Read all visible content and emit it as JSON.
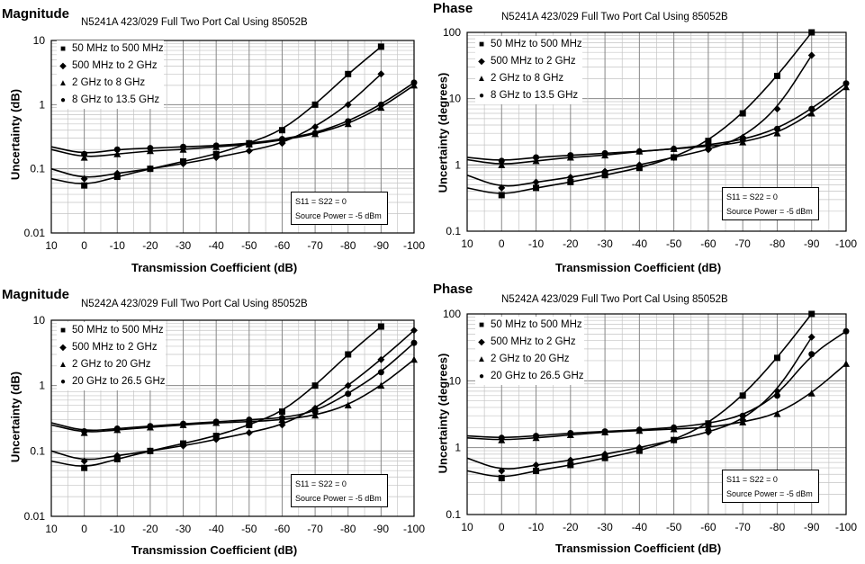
{
  "panels": [
    {
      "heading": "Magnitude",
      "chart_title": "N5241A 423/029 Full Two Port Cal Using 85052B",
      "ylabel": "Uncertainty (dB)",
      "xlabel": "Transmission Coefficient (dB)",
      "note_line1": "S11 = S22 = 0",
      "note_line2": "Source Power = -5 dBm",
      "yticks": [
        "10",
        "1",
        "0.1",
        "0.01"
      ],
      "xticks": [
        "10",
        "0",
        "-10",
        "-20",
        "-30",
        "-40",
        "-50",
        "-60",
        "-70",
        "-80",
        "-90",
        "-100"
      ],
      "legend": [
        "50 MHz to 500 MHz",
        "500 MHz to 2 GHz",
        "2 GHz to 8 GHz",
        "8 GHz to 13.5 GHz"
      ]
    },
    {
      "heading": "Phase",
      "chart_title": "N5241A 423/029 Full Two Port Cal Using 85052B",
      "ylabel": "Uncertainty (degrees)",
      "xlabel": "Transmission Coefficient (dB)",
      "note_line1": "S11 = S22 = 0",
      "note_line2": "Source Power = -5 dBm",
      "yticks": [
        "100",
        "10",
        "1",
        "0.1"
      ],
      "xticks": [
        "10",
        "0",
        "-10",
        "-20",
        "-30",
        "-40",
        "-50",
        "-60",
        "-70",
        "-80",
        "-90",
        "-100"
      ],
      "legend": [
        "50 MHz to 500 MHz",
        "500 MHz to 2 GHz",
        "2 GHz to 8 GHz",
        "8 GHz to 13.5 GHz"
      ]
    },
    {
      "heading": "Magnitude",
      "chart_title": "N5242A 423/029 Full Two Port Cal Using 85052B",
      "ylabel": "Uncertainty (dB)",
      "xlabel": "Transmission Coefficient (dB)",
      "note_line1": "S11 = S22 = 0",
      "note_line2": "Source Power = -5 dBm",
      "yticks": [
        "10",
        "1",
        "0.1",
        "0.01"
      ],
      "xticks": [
        "10",
        "0",
        "-10",
        "-20",
        "-30",
        "-40",
        "-50",
        "-60",
        "-70",
        "-80",
        "-90",
        "-100"
      ],
      "legend": [
        "50 MHz to 500 MHz",
        "500 MHz to 2 GHz",
        "2 GHz to 20 GHz",
        "20 GHz to 26.5 GHz"
      ]
    },
    {
      "heading": "Phase",
      "chart_title": "N5242A 423/029 Full Two Port Cal Using 85052B",
      "ylabel": "Uncertainty (degrees)",
      "xlabel": "Transmission Coefficient (dB)",
      "note_line1": "S11 = S22 = 0",
      "note_line2": "Source Power = -5 dBm",
      "yticks": [
        "100",
        "10",
        "1",
        "0.1"
      ],
      "xticks": [
        "10",
        "0",
        "-10",
        "-20",
        "-30",
        "-40",
        "-50",
        "-60",
        "-70",
        "-80",
        "-90",
        "-100"
      ],
      "legend": [
        "50 MHz to 500 MHz",
        "500 MHz to 2 GHz",
        "2 GHz to 20 GHz",
        "20 GHz to 26.5 GHz"
      ]
    }
  ],
  "chart_data": [
    {
      "type": "line",
      "title": "N5241A 423/029 Full Two Port Cal Using 85052B",
      "xlabel": "Transmission Coefficient (dB)",
      "ylabel": "Uncertainty (dB)",
      "xlim": [
        10,
        -100
      ],
      "ylim": [
        0.01,
        10
      ],
      "yscale": "log",
      "grid": true,
      "legend_position": "top-left",
      "series": [
        {
          "name": "50 MHz to 500 MHz",
          "marker": "square",
          "x": [
            10,
            0,
            -10,
            -20,
            -30,
            -40,
            -50,
            -60,
            -70,
            -80,
            -90
          ],
          "y": [
            0.07,
            0.055,
            0.075,
            0.1,
            0.13,
            0.17,
            0.25,
            0.4,
            1.0,
            3.0,
            8.0
          ]
        },
        {
          "name": "500 MHz to 2 GHz",
          "marker": "diamond",
          "x": [
            10,
            0,
            -10,
            -20,
            -30,
            -40,
            -50,
            -60,
            -70,
            -80,
            -90
          ],
          "y": [
            0.1,
            0.07,
            0.085,
            0.1,
            0.12,
            0.15,
            0.19,
            0.25,
            0.45,
            1.0,
            3.0
          ]
        },
        {
          "name": "2 GHz to 8 GHz",
          "marker": "triangle",
          "x": [
            10,
            0,
            -10,
            -20,
            -30,
            -40,
            -50,
            -60,
            -70,
            -80,
            -90,
            -100
          ],
          "y": [
            0.2,
            0.15,
            0.17,
            0.19,
            0.2,
            0.22,
            0.24,
            0.28,
            0.35,
            0.5,
            0.9,
            2.0
          ]
        },
        {
          "name": "8 GHz to 13.5 GHz",
          "marker": "circle",
          "x": [
            10,
            0,
            -10,
            -20,
            -30,
            -40,
            -50,
            -60,
            -70,
            -80,
            -90,
            -100
          ],
          "y": [
            0.22,
            0.17,
            0.2,
            0.21,
            0.22,
            0.23,
            0.25,
            0.29,
            0.36,
            0.55,
            1.0,
            2.2
          ]
        }
      ],
      "annotations": [
        "S11 = S22 = 0",
        "Source Power = -5 dBm"
      ]
    },
    {
      "type": "line",
      "title": "N5241A 423/029 Full Two Port Cal Using 85052B",
      "xlabel": "Transmission Coefficient (dB)",
      "ylabel": "Uncertainty (degrees)",
      "xlim": [
        10,
        -100
      ],
      "ylim": [
        0.1,
        100
      ],
      "yscale": "log",
      "grid": true,
      "legend_position": "top-left",
      "series": [
        {
          "name": "50 MHz to 500 MHz",
          "marker": "square",
          "x": [
            10,
            0,
            -10,
            -20,
            -30,
            -40,
            -50,
            -60,
            -70,
            -80,
            -90
          ],
          "y": [
            0.45,
            0.35,
            0.45,
            0.55,
            0.7,
            0.9,
            1.3,
            2.3,
            6.0,
            22,
            100
          ]
        },
        {
          "name": "500 MHz to 2 GHz",
          "marker": "diamond",
          "x": [
            10,
            0,
            -10,
            -20,
            -30,
            -40,
            -50,
            -60,
            -70,
            -80,
            -90
          ],
          "y": [
            0.7,
            0.45,
            0.55,
            0.65,
            0.8,
            1.0,
            1.3,
            1.7,
            2.6,
            7.0,
            45
          ]
        },
        {
          "name": "2 GHz to 8 GHz",
          "marker": "triangle",
          "x": [
            10,
            0,
            -10,
            -20,
            -30,
            -40,
            -50,
            -60,
            -70,
            -80,
            -90,
            -100
          ],
          "y": [
            1.2,
            1.0,
            1.15,
            1.3,
            1.4,
            1.6,
            1.75,
            1.9,
            2.2,
            3.0,
            6.0,
            15
          ]
        },
        {
          "name": "8 GHz to 13.5 GHz",
          "marker": "circle",
          "x": [
            10,
            0,
            -10,
            -20,
            -30,
            -40,
            -50,
            -60,
            -70,
            -80,
            -90,
            -100
          ],
          "y": [
            1.3,
            1.15,
            1.3,
            1.4,
            1.5,
            1.6,
            1.75,
            2.0,
            2.4,
            3.5,
            7.0,
            17
          ]
        }
      ],
      "annotations": [
        "S11 = S22 = 0",
        "Source Power = -5 dBm"
      ]
    },
    {
      "type": "line",
      "title": "N5242A 423/029 Full Two Port Cal Using 85052B",
      "xlabel": "Transmission Coefficient (dB)",
      "ylabel": "Uncertainty (dB)",
      "xlim": [
        10,
        -100
      ],
      "ylim": [
        0.01,
        10
      ],
      "yscale": "log",
      "grid": true,
      "legend_position": "top-left",
      "series": [
        {
          "name": "50 MHz to 500 MHz",
          "marker": "square",
          "x": [
            10,
            0,
            -10,
            -20,
            -30,
            -40,
            -50,
            -60,
            -70,
            -80,
            -90
          ],
          "y": [
            0.07,
            0.055,
            0.075,
            0.1,
            0.13,
            0.17,
            0.25,
            0.4,
            1.0,
            3.0,
            8.0
          ]
        },
        {
          "name": "500 MHz to 2 GHz",
          "marker": "diamond",
          "x": [
            10,
            0,
            -10,
            -20,
            -30,
            -40,
            -50,
            -60,
            -70,
            -80,
            -90,
            -100
          ],
          "y": [
            0.1,
            0.07,
            0.085,
            0.1,
            0.12,
            0.15,
            0.19,
            0.25,
            0.45,
            1.0,
            2.5,
            7.0
          ]
        },
        {
          "name": "2 GHz to 20 GHz",
          "marker": "triangle",
          "x": [
            10,
            0,
            -10,
            -20,
            -30,
            -40,
            -50,
            -60,
            -70,
            -80,
            -90,
            -100
          ],
          "y": [
            0.25,
            0.19,
            0.21,
            0.23,
            0.25,
            0.27,
            0.28,
            0.3,
            0.35,
            0.5,
            1.0,
            2.5
          ]
        },
        {
          "name": "20 GHz to 26.5 GHz",
          "marker": "circle",
          "x": [
            10,
            0,
            -10,
            -20,
            -30,
            -40,
            -50,
            -60,
            -70,
            -80,
            -90,
            -100
          ],
          "y": [
            0.27,
            0.2,
            0.22,
            0.24,
            0.26,
            0.28,
            0.3,
            0.32,
            0.4,
            0.75,
            1.6,
            4.5
          ]
        }
      ],
      "annotations": [
        "S11 = S22 = 0",
        "Source Power = -5 dBm"
      ]
    },
    {
      "type": "line",
      "title": "N5242A 423/029 Full Two Port Cal Using 85052B",
      "xlabel": "Transmission Coefficient (dB)",
      "ylabel": "Uncertainty (degrees)",
      "xlim": [
        10,
        -100
      ],
      "ylim": [
        0.1,
        100
      ],
      "yscale": "log",
      "grid": true,
      "legend_position": "top-left",
      "series": [
        {
          "name": "50 MHz to 500 MHz",
          "marker": "square",
          "x": [
            10,
            0,
            -10,
            -20,
            -30,
            -40,
            -50,
            -60,
            -70,
            -80,
            -90
          ],
          "y": [
            0.45,
            0.35,
            0.45,
            0.55,
            0.7,
            0.9,
            1.3,
            2.3,
            6.0,
            22,
            100
          ]
        },
        {
          "name": "500 MHz to 2 GHz",
          "marker": "diamond",
          "x": [
            10,
            0,
            -10,
            -20,
            -30,
            -40,
            -50,
            -60,
            -70,
            -80,
            -90
          ],
          "y": [
            0.7,
            0.45,
            0.55,
            0.65,
            0.8,
            1.0,
            1.3,
            1.7,
            2.6,
            7.0,
            45
          ]
        },
        {
          "name": "2 GHz to 20 GHz",
          "marker": "triangle",
          "x": [
            10,
            0,
            -10,
            -20,
            -30,
            -40,
            -50,
            -60,
            -70,
            -80,
            -90,
            -100
          ],
          "y": [
            1.4,
            1.3,
            1.4,
            1.55,
            1.7,
            1.8,
            1.9,
            2.0,
            2.4,
            3.2,
            6.5,
            18
          ]
        },
        {
          "name": "20 GHz to 26.5 GHz",
          "marker": "circle",
          "x": [
            10,
            0,
            -10,
            -20,
            -30,
            -40,
            -50,
            -60,
            -70,
            -80,
            -90,
            -100
          ],
          "y": [
            1.5,
            1.4,
            1.5,
            1.65,
            1.75,
            1.85,
            2.0,
            2.3,
            3.0,
            6.0,
            25,
            55
          ]
        }
      ],
      "annotations": [
        "S11 = S22 = 0",
        "Source Power = -5 dBm"
      ]
    }
  ]
}
